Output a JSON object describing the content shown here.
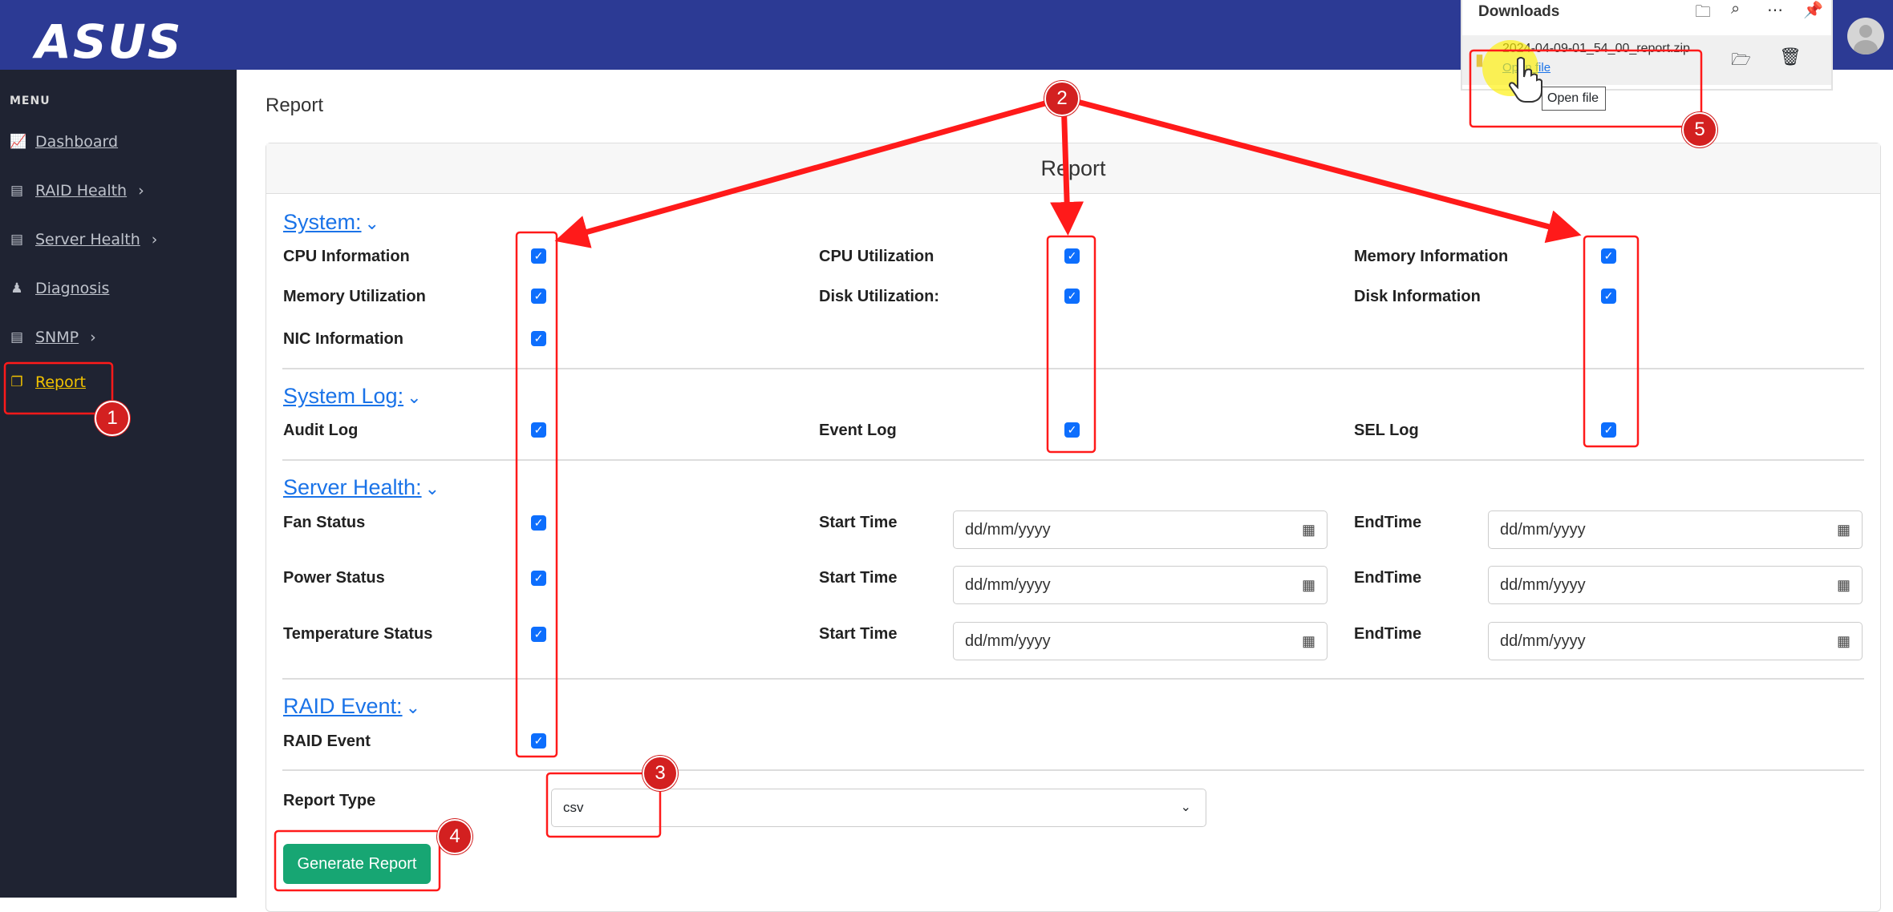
{
  "header": {
    "logo": "ASUS"
  },
  "sidebar": {
    "menu_title": "MENU",
    "items": [
      {
        "label": "Dashboard",
        "icon": "chart-line-icon"
      },
      {
        "label": "RAID Health",
        "icon": "calendar-icon",
        "chevron": true
      },
      {
        "label": "Server Health",
        "icon": "calendar-icon",
        "chevron": true
      },
      {
        "label": "Diagnosis",
        "icon": "user-doctor-icon"
      },
      {
        "label": "SNMP",
        "icon": "calendar-icon",
        "chevron": true
      },
      {
        "label": "Report",
        "icon": "copy-icon",
        "active": true
      }
    ]
  },
  "page": {
    "title": "Report",
    "card_title": "Report"
  },
  "sections": {
    "system": {
      "title": "System:",
      "items": [
        "CPU Information",
        "CPU Utilization",
        "Memory Information",
        "Memory Utilization",
        "Disk Utilization:",
        "Disk Information",
        "NIC Information"
      ]
    },
    "system_log": {
      "title": "System Log:",
      "items": [
        "Audit Log",
        "Event Log",
        "SEL Log"
      ]
    },
    "server_health": {
      "title": "Server Health:",
      "items": [
        "Fan Status",
        "Power Status",
        "Temperature Status"
      ],
      "start_label": "Start Time",
      "end_label": "EndTime",
      "date_placeholder": "dd/mm/yyyy"
    },
    "raid_event": {
      "title": "RAID Event:",
      "items": [
        "RAID Event"
      ]
    }
  },
  "report_type": {
    "label": "Report Type",
    "value": "csv"
  },
  "generate_button": "Generate Report",
  "downloads": {
    "title": "Downloads",
    "file": "2024-04-09-01_54_00_report.zip",
    "open_link": "Open file",
    "tooltip": "Open file"
  },
  "annotations": [
    "1",
    "2",
    "3",
    "4",
    "5"
  ],
  "colors": {
    "header": "#2c3a94",
    "sidebar": "#1f2332",
    "active": "#f2c200",
    "checkbox": "#0d6efd",
    "button": "#17a673",
    "annotation": "#e02020"
  }
}
